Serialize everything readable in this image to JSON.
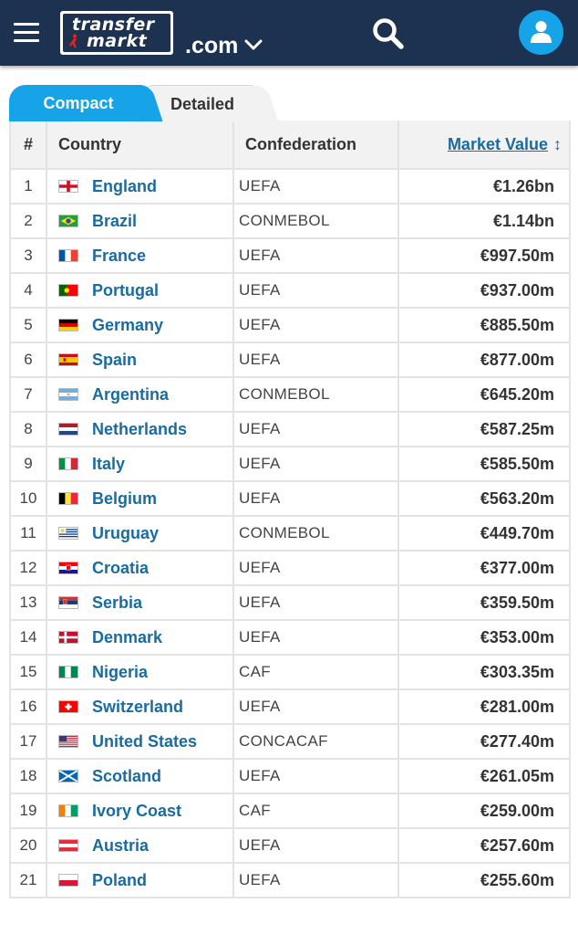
{
  "header": {
    "logo_line1": "transfer",
    "logo_line2": "markt",
    "domain_label": ".com",
    "menu_icon": "hamburger-menu-icon",
    "search_icon": "search-icon",
    "user_icon": "user-account-icon",
    "background": "#1d3150",
    "accent": "#16a3e8"
  },
  "tabs": [
    {
      "label": "Compact",
      "active": true
    },
    {
      "label": "Detailed",
      "active": false
    }
  ],
  "table": {
    "columns": {
      "rank": "#",
      "country": "Country",
      "confederation": "Confederation",
      "market_value": "Market Value",
      "sort_arrow": "↕"
    },
    "rows": [
      {
        "rank": "1",
        "country": "England",
        "flag": "england",
        "confederation": "UEFA",
        "value": "€1.26bn"
      },
      {
        "rank": "2",
        "country": "Brazil",
        "flag": "brazil",
        "confederation": "CONMEBOL",
        "value": "€1.14bn"
      },
      {
        "rank": "3",
        "country": "France",
        "flag": "france",
        "confederation": "UEFA",
        "value": "€997.50m"
      },
      {
        "rank": "4",
        "country": "Portugal",
        "flag": "portugal",
        "confederation": "UEFA",
        "value": "€937.00m"
      },
      {
        "rank": "5",
        "country": "Germany",
        "flag": "germany",
        "confederation": "UEFA",
        "value": "€885.50m"
      },
      {
        "rank": "6",
        "country": "Spain",
        "flag": "spain",
        "confederation": "UEFA",
        "value": "€877.00m"
      },
      {
        "rank": "7",
        "country": "Argentina",
        "flag": "argentina",
        "confederation": "CONMEBOL",
        "value": "€645.20m"
      },
      {
        "rank": "8",
        "country": "Netherlands",
        "flag": "netherlands",
        "confederation": "UEFA",
        "value": "€587.25m"
      },
      {
        "rank": "9",
        "country": "Italy",
        "flag": "italy",
        "confederation": "UEFA",
        "value": "€585.50m"
      },
      {
        "rank": "10",
        "country": "Belgium",
        "flag": "belgium",
        "confederation": "UEFA",
        "value": "€563.20m"
      },
      {
        "rank": "11",
        "country": "Uruguay",
        "flag": "uruguay",
        "confederation": "CONMEBOL",
        "value": "€449.70m"
      },
      {
        "rank": "12",
        "country": "Croatia",
        "flag": "croatia",
        "confederation": "UEFA",
        "value": "€377.00m"
      },
      {
        "rank": "13",
        "country": "Serbia",
        "flag": "serbia",
        "confederation": "UEFA",
        "value": "€359.50m"
      },
      {
        "rank": "14",
        "country": "Denmark",
        "flag": "denmark",
        "confederation": "UEFA",
        "value": "€353.00m"
      },
      {
        "rank": "15",
        "country": "Nigeria",
        "flag": "nigeria",
        "confederation": "CAF",
        "value": "€303.35m"
      },
      {
        "rank": "16",
        "country": "Switzerland",
        "flag": "switzerland",
        "confederation": "UEFA",
        "value": "€281.00m"
      },
      {
        "rank": "17",
        "country": "United States",
        "flag": "usa",
        "confederation": "CONCACAF",
        "value": "€277.40m"
      },
      {
        "rank": "18",
        "country": "Scotland",
        "flag": "scotland",
        "confederation": "UEFA",
        "value": "€261.05m"
      },
      {
        "rank": "19",
        "country": "Ivory Coast",
        "flag": "ivory-coast",
        "confederation": "CAF",
        "value": "€259.00m"
      },
      {
        "rank": "20",
        "country": "Austria",
        "flag": "austria",
        "confederation": "UEFA",
        "value": "€257.60m"
      },
      {
        "rank": "21",
        "country": "Poland",
        "flag": "poland",
        "confederation": "UEFA",
        "value": "€255.60m"
      }
    ]
  }
}
